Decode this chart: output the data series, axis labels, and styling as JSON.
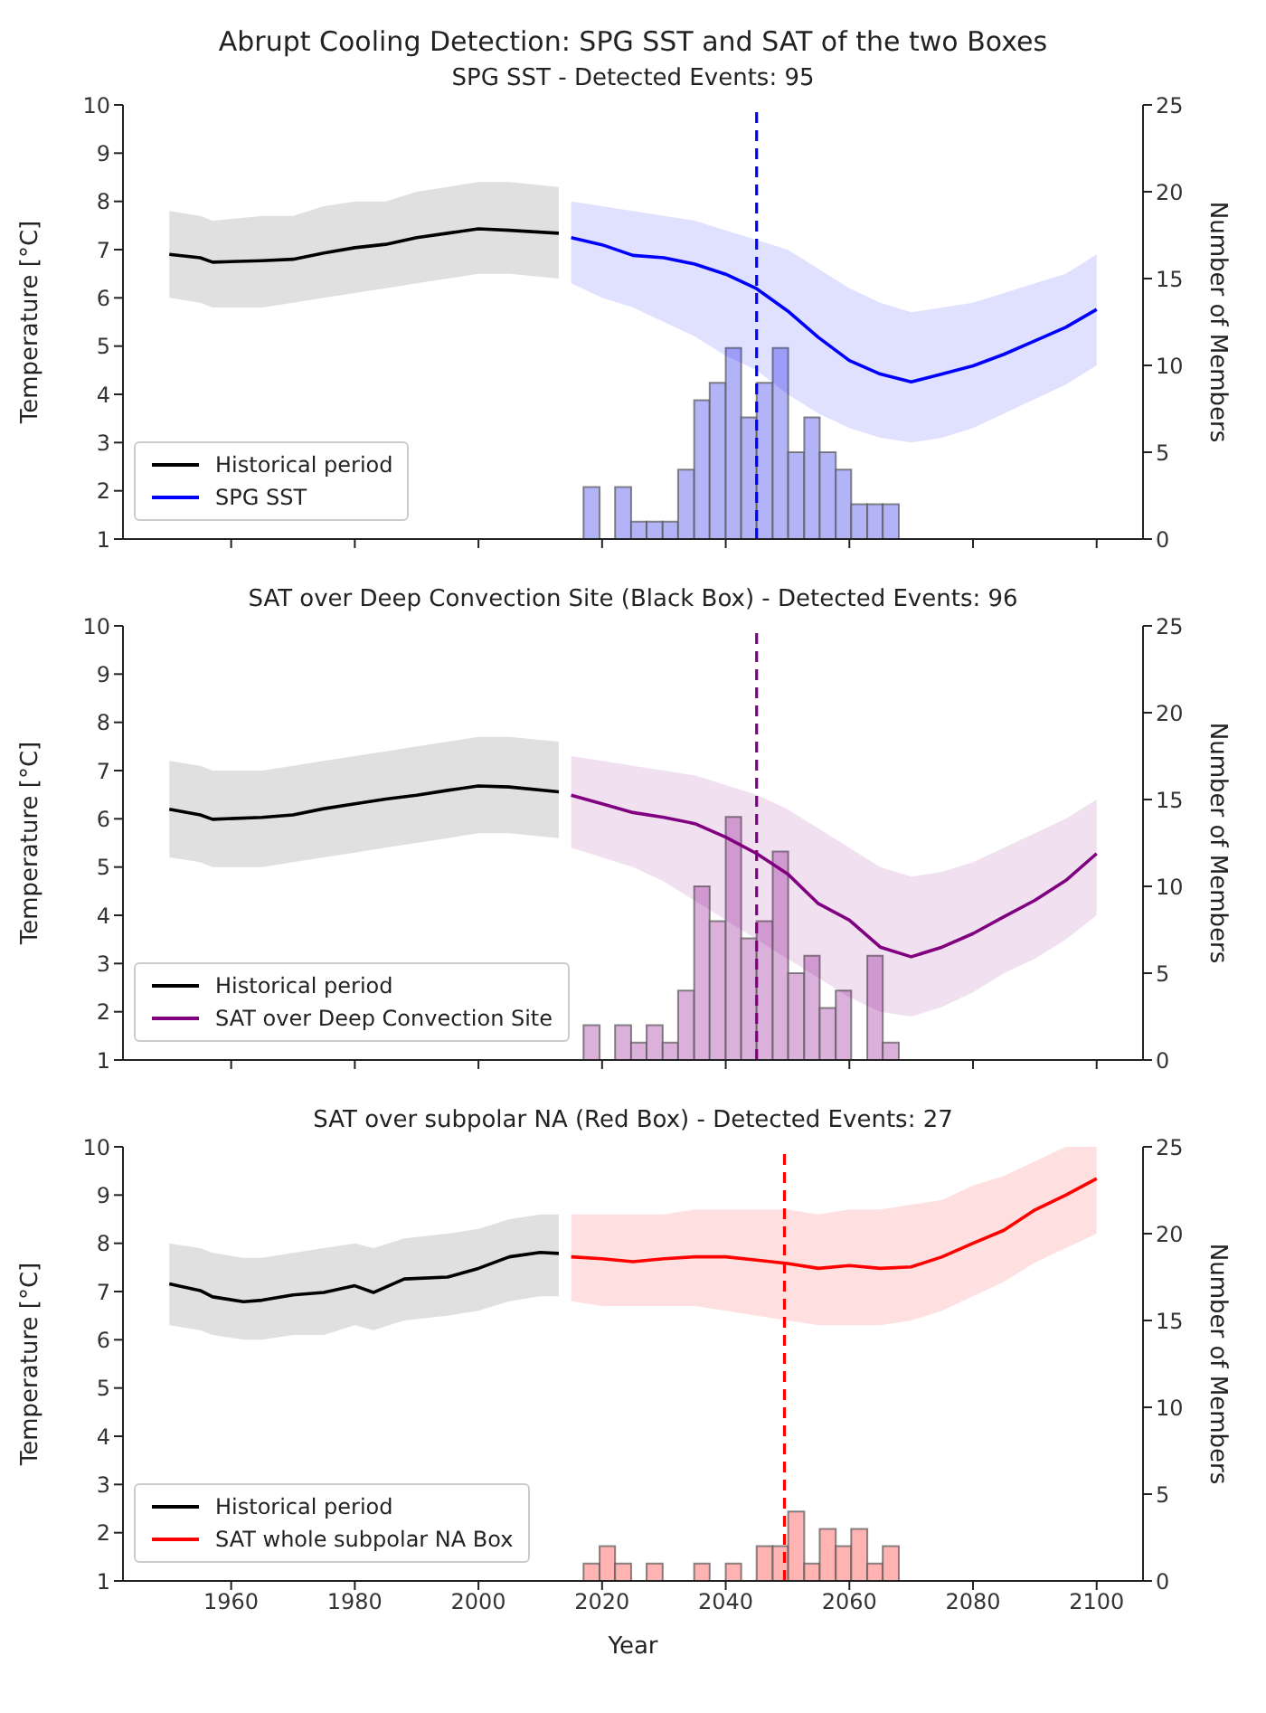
{
  "chart_data": [
    {
      "type": "line",
      "title": "Abrupt Cooling Detection: SPG SST and SAT of the two Boxes",
      "subtitle": "SPG SST  -  Detected Events: 95",
      "ylabel": "Temperature [°C]",
      "y2label": "Number of Members",
      "xlim": [
        1942.5,
        2107.5
      ],
      "xticks": [
        1960,
        1980,
        2000,
        2020,
        2040,
        2060,
        2080,
        2100
      ],
      "ylim": [
        1,
        10
      ],
      "yticks": [
        1,
        2,
        3,
        4,
        5,
        6,
        7,
        8,
        9,
        10
      ],
      "y2lim": [
        0,
        25
      ],
      "y2ticks": [
        0,
        5,
        10,
        15,
        20,
        25
      ],
      "tick_labels": "y",
      "legend": "bottom left",
      "grid": false,
      "ref_lines": [
        {
          "axis": "x",
          "value": 2045,
          "color": "#0000ff",
          "line_style": "dashed"
        }
      ],
      "series": [
        {
          "name": "Historical period",
          "color": "#000000",
          "x": [
            1950,
            1955,
            1957,
            1965,
            1970,
            1975,
            1980,
            1985,
            1990,
            1995,
            2000,
            2005,
            2013
          ],
          "values": [
            6.9,
            6.83,
            6.74,
            6.77,
            6.8,
            6.93,
            7.04,
            7.11,
            7.25,
            7.34,
            7.43,
            7.4,
            7.34
          ],
          "lower": [
            6.0,
            5.9,
            5.8,
            5.8,
            5.9,
            6.0,
            6.1,
            6.2,
            6.3,
            6.4,
            6.5,
            6.5,
            6.4
          ],
          "upper": [
            7.8,
            7.7,
            7.6,
            7.7,
            7.7,
            7.9,
            8.0,
            8.0,
            8.2,
            8.3,
            8.4,
            8.4,
            8.3
          ]
        },
        {
          "name": "SPG SST",
          "color": "#0000ff",
          "x": [
            2015,
            2020,
            2025,
            2030,
            2035,
            2040,
            2045,
            2050,
            2055,
            2060,
            2065,
            2070,
            2075,
            2080,
            2085,
            2090,
            2095,
            2100
          ],
          "values": [
            7.25,
            7.1,
            6.88,
            6.83,
            6.7,
            6.49,
            6.19,
            5.73,
            5.18,
            4.7,
            4.42,
            4.26,
            4.42,
            4.59,
            4.83,
            5.11,
            5.39,
            5.76
          ],
          "lower": [
            6.3,
            6.0,
            5.8,
            5.5,
            5.2,
            4.8,
            4.5,
            4.0,
            3.6,
            3.3,
            3.1,
            3.0,
            3.1,
            3.3,
            3.6,
            3.9,
            4.2,
            4.6
          ],
          "upper": [
            8.0,
            7.9,
            7.8,
            7.7,
            7.6,
            7.4,
            7.2,
            7.0,
            6.6,
            6.2,
            5.9,
            5.7,
            5.8,
            5.9,
            6.1,
            6.3,
            6.5,
            6.9
          ]
        },
        {
          "type": "histogram",
          "axis": "y2",
          "color": "#b3b3f7",
          "bins": [
            2017,
            2019.6,
            2022.1,
            2024.7,
            2027.2,
            2029.8,
            2032.3,
            2034.9,
            2037.4,
            2040,
            2042.5,
            2045,
            2047.6,
            2050.1,
            2052.7,
            2055.2,
            2057.8,
            2060.3,
            2062.9,
            2065.4,
            2068
          ],
          "values": [
            3,
            0,
            3,
            1,
            1,
            1,
            4,
            8,
            9,
            11,
            7,
            9,
            11,
            5,
            7,
            5,
            4,
            2,
            2,
            2
          ]
        }
      ]
    },
    {
      "type": "line",
      "title": "SAT over Deep Convection Site (Black Box)  -  Detected Events: 96",
      "ylabel": "Temperature [°C]",
      "y2label": "Number of Members",
      "xlim": [
        1942.5,
        2107.5
      ],
      "xticks": [
        1960,
        1980,
        2000,
        2020,
        2040,
        2060,
        2080,
        2100
      ],
      "ylim": [
        1,
        10
      ],
      "yticks": [
        1,
        2,
        3,
        4,
        5,
        6,
        7,
        8,
        9,
        10
      ],
      "y2lim": [
        0,
        25
      ],
      "y2ticks": [
        0,
        5,
        10,
        15,
        20,
        25
      ],
      "tick_labels": "y",
      "legend": "bottom left",
      "grid": false,
      "ref_lines": [
        {
          "axis": "x",
          "value": 2045,
          "color": "#800080",
          "line_style": "dashed"
        }
      ],
      "series": [
        {
          "name": "Historical period",
          "color": "#000000",
          "x": [
            1950,
            1955,
            1957,
            1965,
            1970,
            1975,
            1980,
            1985,
            1990,
            1995,
            2000,
            2005,
            2013
          ],
          "values": [
            6.2,
            6.08,
            5.99,
            6.03,
            6.08,
            6.21,
            6.31,
            6.41,
            6.49,
            6.59,
            6.68,
            6.66,
            6.56
          ],
          "lower": [
            5.2,
            5.1,
            5.0,
            5.0,
            5.1,
            5.2,
            5.3,
            5.4,
            5.5,
            5.6,
            5.7,
            5.7,
            5.6
          ],
          "upper": [
            7.2,
            7.1,
            7.0,
            7.0,
            7.1,
            7.2,
            7.3,
            7.4,
            7.5,
            7.6,
            7.7,
            7.7,
            7.6
          ]
        },
        {
          "name": "SAT over Deep Convection Site",
          "color": "#800080",
          "x": [
            2015,
            2020,
            2025,
            2030,
            2035,
            2040,
            2045,
            2050,
            2055,
            2060,
            2065,
            2070,
            2075,
            2080,
            2085,
            2090,
            2095,
            2100
          ],
          "values": [
            6.49,
            6.31,
            6.13,
            6.03,
            5.9,
            5.62,
            5.28,
            4.86,
            4.24,
            3.9,
            3.34,
            3.14,
            3.34,
            3.62,
            3.97,
            4.31,
            4.72,
            5.28
          ],
          "lower": [
            5.4,
            5.2,
            5.0,
            4.7,
            4.3,
            3.9,
            3.5,
            3.1,
            2.7,
            2.3,
            2.0,
            1.9,
            2.1,
            2.4,
            2.8,
            3.1,
            3.5,
            4.0
          ],
          "upper": [
            7.3,
            7.2,
            7.1,
            7.0,
            6.9,
            6.7,
            6.5,
            6.2,
            5.8,
            5.4,
            5.0,
            4.8,
            4.9,
            5.1,
            5.4,
            5.7,
            6.0,
            6.4
          ]
        },
        {
          "type": "histogram",
          "axis": "y2",
          "color": "#dbb0db",
          "bins": [
            2017,
            2019.6,
            2022.1,
            2024.7,
            2027.2,
            2029.8,
            2032.3,
            2034.9,
            2037.4,
            2040,
            2042.5,
            2045,
            2047.6,
            2050.1,
            2052.7,
            2055.2,
            2057.8,
            2060.3,
            2062.9,
            2065.4,
            2068
          ],
          "values": [
            2,
            0,
            2,
            1,
            2,
            1,
            4,
            10,
            8,
            14,
            7,
            8,
            12,
            5,
            6,
            3,
            4,
            0,
            6,
            1
          ]
        }
      ]
    },
    {
      "type": "line",
      "title": "SAT over subpolar NA (Red Box)  -  Detected Events: 27",
      "xlabel": "Year",
      "ylabel": "Temperature [°C]",
      "y2label": "Number of Members",
      "xlim": [
        1942.5,
        2107.5
      ],
      "xticks": [
        1960,
        1980,
        2000,
        2020,
        2040,
        2060,
        2080,
        2100
      ],
      "ylim": [
        1,
        10
      ],
      "yticks": [
        1,
        2,
        3,
        4,
        5,
        6,
        7,
        8,
        9,
        10
      ],
      "y2lim": [
        0,
        25
      ],
      "y2ticks": [
        0,
        5,
        10,
        15,
        20,
        25
      ],
      "legend": "bottom left",
      "grid": false,
      "ref_lines": [
        {
          "axis": "x",
          "value": 2049.5,
          "color": "#ff0000",
          "line_style": "dashed"
        }
      ],
      "series": [
        {
          "name": "Historical period",
          "color": "#000000",
          "x": [
            1950,
            1955,
            1957,
            1962,
            1965,
            1970,
            1975,
            1980,
            1983,
            1988,
            1995,
            2000,
            2005,
            2010,
            2013
          ],
          "values": [
            7.16,
            7.02,
            6.89,
            6.79,
            6.82,
            6.93,
            6.98,
            7.12,
            6.98,
            7.26,
            7.3,
            7.48,
            7.72,
            7.81,
            7.79
          ],
          "lower": [
            6.3,
            6.2,
            6.1,
            6.0,
            6.0,
            6.1,
            6.1,
            6.3,
            6.2,
            6.4,
            6.5,
            6.6,
            6.8,
            6.9,
            6.9
          ],
          "upper": [
            8.0,
            7.9,
            7.8,
            7.7,
            7.7,
            7.8,
            7.9,
            8.0,
            7.9,
            8.1,
            8.2,
            8.3,
            8.5,
            8.6,
            8.6
          ]
        },
        {
          "name": "SAT whole subpolar NA Box",
          "color": "#ff0000",
          "x": [
            2015,
            2020,
            2025,
            2030,
            2035,
            2040,
            2045,
            2050,
            2055,
            2060,
            2065,
            2070,
            2075,
            2080,
            2085,
            2090,
            2095,
            2100
          ],
          "values": [
            7.72,
            7.68,
            7.62,
            7.68,
            7.72,
            7.72,
            7.65,
            7.58,
            7.48,
            7.54,
            7.48,
            7.51,
            7.72,
            8.0,
            8.27,
            8.69,
            9.0,
            9.34
          ],
          "lower": [
            6.8,
            6.7,
            6.7,
            6.7,
            6.7,
            6.6,
            6.5,
            6.4,
            6.3,
            6.3,
            6.3,
            6.4,
            6.6,
            6.9,
            7.2,
            7.6,
            7.9,
            8.2
          ],
          "upper": [
            8.6,
            8.6,
            8.6,
            8.6,
            8.7,
            8.7,
            8.7,
            8.7,
            8.6,
            8.7,
            8.7,
            8.8,
            8.9,
            9.2,
            9.4,
            9.7,
            10.0,
            10.0
          ]
        },
        {
          "type": "histogram",
          "axis": "y2",
          "color": "#ffb3b3",
          "bins": [
            2017,
            2019.6,
            2022.1,
            2024.7,
            2027.2,
            2029.8,
            2034.9,
            2037.4,
            2040,
            2042.5,
            2045,
            2047.6,
            2050.1,
            2052.7,
            2055.2,
            2057.8,
            2060.3,
            2062.9,
            2065.4,
            2068
          ],
          "values": [
            1,
            2,
            1,
            0,
            1,
            0,
            1,
            0,
            1,
            0,
            2,
            2,
            4,
            1,
            3,
            2,
            3,
            1,
            2
          ]
        }
      ]
    }
  ]
}
